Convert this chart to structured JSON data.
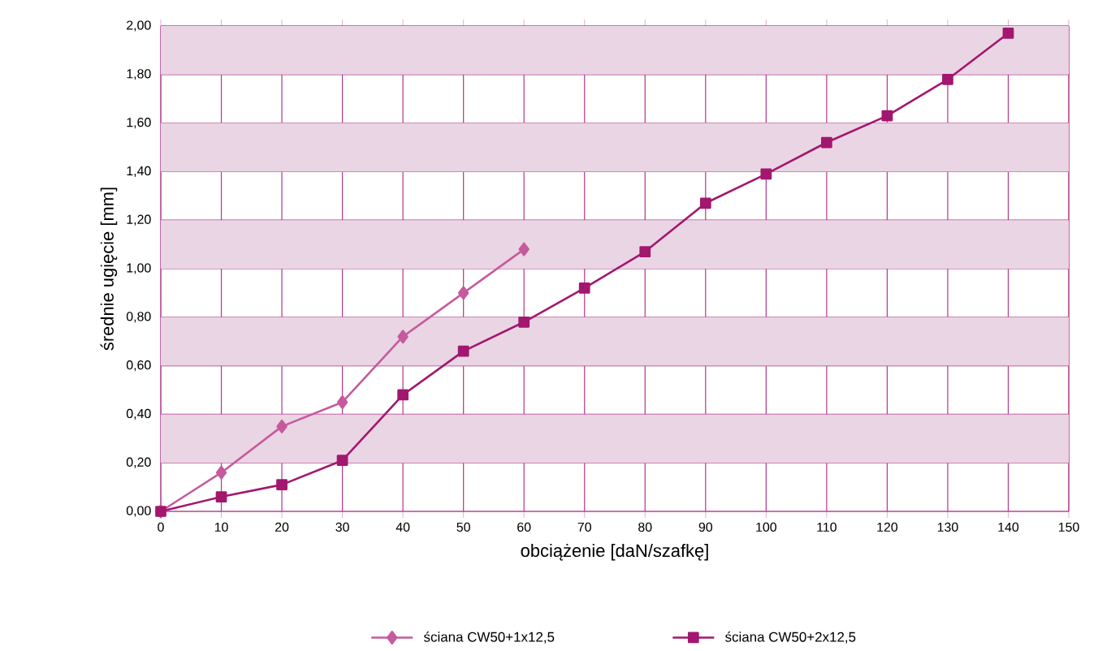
{
  "chart_data": {
    "type": "line",
    "xlabel": "obciążenie [daN/szafkę]",
    "ylabel": "średnie ugięcie [mm]",
    "xlim": [
      0,
      150
    ],
    "ylim": [
      0,
      2
    ],
    "xticks": [
      0,
      10,
      20,
      30,
      40,
      50,
      60,
      70,
      80,
      90,
      100,
      110,
      120,
      130,
      140,
      150
    ],
    "yticks": [
      {
        "value": 0,
        "label": "0,00"
      },
      {
        "value": 0.2,
        "label": "0,20"
      },
      {
        "value": 0.4,
        "label": "0,40"
      },
      {
        "value": 0.6,
        "label": "0,60"
      },
      {
        "value": 0.8,
        "label": "0,80"
      },
      {
        "value": 1.0,
        "label": "1,00"
      },
      {
        "value": 1.2,
        "label": "1,20"
      },
      {
        "value": 1.4,
        "label": "1,40"
      },
      {
        "value": 1.6,
        "label": "1,60"
      },
      {
        "value": 1.8,
        "label": "1,80"
      },
      {
        "value": 2.0,
        "label": "2,00"
      }
    ],
    "grid": true,
    "legend": "bottom",
    "line_style": "solid",
    "bands": [
      {
        "axis": "y",
        "from": 0.2,
        "to": 0.4,
        "color": "#ead5e4"
      },
      {
        "axis": "y",
        "from": 0.6,
        "to": 0.8,
        "color": "#ead5e4"
      },
      {
        "axis": "y",
        "from": 1.0,
        "to": 1.2,
        "color": "#ead5e4"
      },
      {
        "axis": "y",
        "from": 1.4,
        "to": 1.6,
        "color": "#ead5e4"
      },
      {
        "axis": "y",
        "from": 1.8,
        "to": 2.0,
        "color": "#ead5e4"
      }
    ],
    "series": [
      {
        "name": "ściana CW50+1x12,5",
        "color": "#c65a9e",
        "marker": "diamond",
        "x": [
          0,
          10,
          20,
          30,
          40,
          50,
          60
        ],
        "values": [
          0,
          0.16,
          0.35,
          0.45,
          0.72,
          0.9,
          1.08
        ]
      },
      {
        "name": "ściana CW50+2x12,5",
        "color": "#a3176f",
        "marker": "square",
        "x": [
          0,
          10,
          20,
          30,
          40,
          50,
          60,
          70,
          80,
          90,
          100,
          110,
          120,
          130,
          140
        ],
        "values": [
          0,
          0.06,
          0.11,
          0.21,
          0.48,
          0.66,
          0.78,
          0.92,
          1.07,
          1.27,
          1.39,
          1.52,
          1.63,
          1.78,
          1.97
        ]
      }
    ]
  }
}
